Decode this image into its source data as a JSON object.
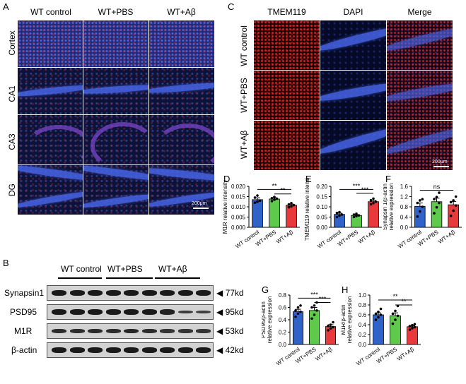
{
  "panels": {
    "A": "A",
    "B": "B",
    "C": "C",
    "D": "D",
    "E": "E",
    "F": "F",
    "G": "G",
    "H": "H"
  },
  "panel_a": {
    "columns": [
      "WT control",
      "WT+PBS",
      "WT+Aβ"
    ],
    "rows": [
      "Cortex",
      "CA1",
      "CA3",
      "DG"
    ],
    "scale": "200μm"
  },
  "panel_c": {
    "columns": [
      "TMEM119",
      "DAPI",
      "Merge"
    ],
    "rows": [
      "WT control",
      "WT+PBS",
      "WT+Aβ"
    ],
    "scale": "200μm"
  },
  "panel_b": {
    "groups": [
      "WT control",
      "WT+PBS",
      "WT+Aβ"
    ],
    "proteins": [
      "Synapsin1",
      "PSD95",
      "M1R",
      "β-actin"
    ],
    "sizes": [
      "77kd",
      "95kd",
      "53kd",
      "42kd"
    ]
  },
  "chart_data": [
    {
      "id": "D",
      "type": "bar",
      "categories": [
        "WT control",
        "WT+PBS",
        "WT+Aβ"
      ],
      "values": [
        0.0135,
        0.0138,
        0.0108
      ],
      "errors": [
        0.0009,
        0.0006,
        0.0005
      ],
      "ylabel": "M1R relative intensity",
      "ylim": [
        0,
        0.02
      ],
      "ticks": [
        "0.000",
        "0.005",
        "0.010",
        "0.015",
        "0.020"
      ],
      "tickvals": [
        0,
        0.005,
        0.01,
        0.015,
        0.02
      ],
      "colors": [
        "#2f63c9",
        "#5ec94a",
        "#e83a3a"
      ],
      "points": [
        [
          0.012,
          0.0125,
          0.013,
          0.0145,
          0.0155
        ],
        [
          0.0128,
          0.0135,
          0.014,
          0.0142,
          0.0148
        ],
        [
          0.0098,
          0.0102,
          0.0108,
          0.0112,
          0.0118
        ]
      ],
      "sig": [
        {
          "from": 0,
          "to": 2,
          "label": "**",
          "y": 0.0185
        },
        {
          "from": 1,
          "to": 2,
          "label": "**",
          "y": 0.0163
        }
      ]
    },
    {
      "id": "E",
      "type": "bar",
      "categories": [
        "WT control",
        "WT+PBS",
        "WT+Aβ"
      ],
      "values": [
        0.063,
        0.058,
        0.125
      ],
      "errors": [
        0.006,
        0.004,
        0.006
      ],
      "ylabel": "TMEM119 relative intensity",
      "ylim": [
        0,
        0.2
      ],
      "ticks": [
        "0.00",
        "0.05",
        "0.10",
        "0.15",
        "0.20"
      ],
      "tickvals": [
        0,
        0.05,
        0.1,
        0.15,
        0.2
      ],
      "colors": [
        "#2f63c9",
        "#5ec94a",
        "#e83a3a"
      ],
      "points": [
        [
          0.05,
          0.057,
          0.062,
          0.07,
          0.074
        ],
        [
          0.05,
          0.055,
          0.058,
          0.062,
          0.066
        ],
        [
          0.112,
          0.118,
          0.125,
          0.132,
          0.14
        ]
      ],
      "sig": [
        {
          "from": 0,
          "to": 2,
          "label": "***",
          "y": 0.185
        },
        {
          "from": 1,
          "to": 2,
          "label": "***",
          "y": 0.166
        }
      ]
    },
    {
      "id": "F",
      "type": "bar",
      "categories": [
        "WT control",
        "WT+PBS",
        "WT+Aβ"
      ],
      "values": [
        0.82,
        1.0,
        0.88
      ],
      "errors": [
        0.13,
        0.14,
        0.13
      ],
      "ylabel": "Synapsin 1/β-actin relative expression",
      "ylim": [
        0,
        1.6
      ],
      "ticks": [
        "0.0",
        "0.4",
        "0.8",
        "1.2",
        "1.6"
      ],
      "tickvals": [
        0,
        0.4,
        0.8,
        1.2,
        1.6
      ],
      "colors": [
        "#2f63c9",
        "#5ec94a",
        "#e83a3a"
      ],
      "points": [
        [
          0.42,
          0.62,
          0.8,
          0.95,
          1.05,
          1.1
        ],
        [
          0.55,
          0.78,
          0.95,
          1.1,
          1.18,
          1.35
        ],
        [
          0.45,
          0.65,
          0.85,
          0.98,
          1.05,
          1.2
        ]
      ],
      "sig": [
        {
          "from": 0,
          "to": 2,
          "label": "ns",
          "y": 1.45
        }
      ]
    },
    {
      "id": "G",
      "type": "bar",
      "categories": [
        "WT control",
        "WT+PBS",
        "WT+Aβ"
      ],
      "values": [
        0.53,
        0.55,
        0.29
      ],
      "errors": [
        0.04,
        0.05,
        0.03
      ],
      "ylabel": "PSD95/β-actin relative expression",
      "ylim": [
        0,
        0.8
      ],
      "ticks": [
        "0.0",
        "0.2",
        "0.4",
        "0.6",
        "0.8"
      ],
      "tickvals": [
        0,
        0.2,
        0.4,
        0.6,
        0.8
      ],
      "colors": [
        "#2f63c9",
        "#5ec94a",
        "#e83a3a"
      ],
      "points": [
        [
          0.45,
          0.5,
          0.53,
          0.55,
          0.6,
          0.63
        ],
        [
          0.42,
          0.48,
          0.55,
          0.6,
          0.63,
          0.68
        ],
        [
          0.23,
          0.26,
          0.28,
          0.3,
          0.32,
          0.36
        ]
      ],
      "sig": [
        {
          "from": 0,
          "to": 2,
          "label": "***",
          "y": 0.75
        },
        {
          "from": 1,
          "to": 2,
          "label": "***",
          "y": 0.68
        }
      ]
    },
    {
      "id": "H",
      "type": "bar",
      "categories": [
        "WT control",
        "WT+PBS",
        "WT+Aβ"
      ],
      "values": [
        0.6,
        0.58,
        0.36
      ],
      "errors": [
        0.04,
        0.06,
        0.02
      ],
      "ylabel": "M1R/β-actin relative expression",
      "ylim": [
        0,
        1.0
      ],
      "ticks": [
        "0.0",
        "0.2",
        "0.4",
        "0.6",
        "0.8",
        "1.0"
      ],
      "tickvals": [
        0,
        0.2,
        0.4,
        0.6,
        0.8,
        1.0
      ],
      "colors": [
        "#2f63c9",
        "#5ec94a",
        "#e83a3a"
      ],
      "points": [
        [
          0.5,
          0.55,
          0.6,
          0.62,
          0.66,
          0.72
        ],
        [
          0.42,
          0.5,
          0.58,
          0.62,
          0.68,
          0.78
        ],
        [
          0.3,
          0.33,
          0.35,
          0.37,
          0.39,
          0.41
        ]
      ],
      "sig": [
        {
          "from": 0,
          "to": 2,
          "label": "**",
          "y": 0.9
        },
        {
          "from": 1,
          "to": 2,
          "label": "**",
          "y": 0.8
        }
      ]
    }
  ]
}
